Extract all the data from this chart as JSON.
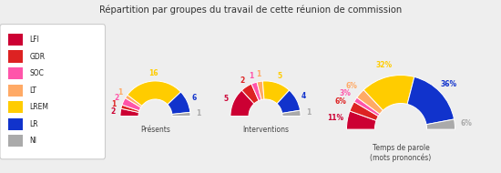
{
  "title": "Répartition par groupes du travail de cette réunion de commission",
  "groups": [
    "LFI",
    "GDR",
    "SOC",
    "LT",
    "LREM",
    "LR",
    "NI"
  ],
  "colors": [
    "#cc0033",
    "#dd2222",
    "#ff55aa",
    "#ffaa66",
    "#ffcc00",
    "#1133cc",
    "#aaaaaa"
  ],
  "charts": [
    {
      "label": "Présents",
      "values": [
        2,
        1,
        2,
        1,
        16,
        6,
        1
      ],
      "ann_texts": [
        "2",
        "1",
        "2",
        "1",
        "16",
        "6",
        "1"
      ],
      "ann_colors": [
        "#cc0033",
        "#dd2222",
        "#ff55aa",
        "#ffaa66",
        "#ffcc00",
        "#1133cc",
        "#aaaaaa"
      ]
    },
    {
      "label": "Interventions",
      "values": [
        5,
        2,
        1,
        1,
        5,
        4,
        1
      ],
      "ann_texts": [
        "5",
        "2",
        "1",
        "1",
        "5",
        "4",
        "1"
      ],
      "ann_colors": [
        "#cc0033",
        "#dd2222",
        "#ff55aa",
        "#ffaa66",
        "#ffcc00",
        "#1133cc",
        "#aaaaaa"
      ]
    },
    {
      "label": "Temps de parole\n(mots prononcés)",
      "values": [
        11,
        6,
        3,
        6,
        32,
        36,
        6
      ],
      "ann_texts": [
        "11%",
        "6%",
        "3%",
        "6%",
        "32%",
        "36%",
        "6%"
      ],
      "ann_colors": [
        "#cc0033",
        "#dd2222",
        "#ff55aa",
        "#ffaa66",
        "#ffcc00",
        "#1133cc",
        "#aaaaaa"
      ]
    }
  ],
  "bg_color": "#eeeeee",
  "outer_r": 1.0,
  "inner_r": 0.48,
  "ann_r": 1.22
}
